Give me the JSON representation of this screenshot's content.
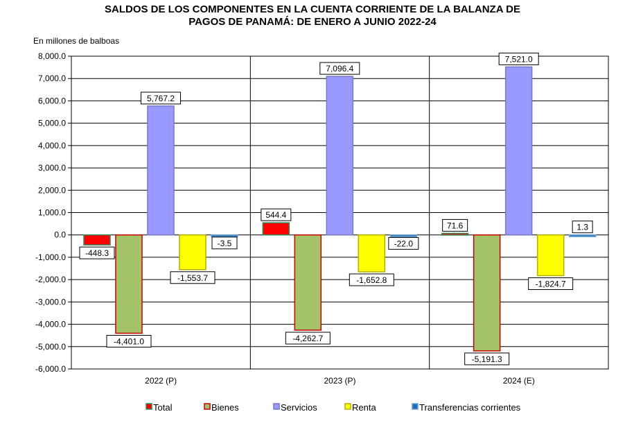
{
  "chart_data": {
    "type": "bar",
    "title_lines": [
      "SALDOS DE LOS COMPONENTES EN LA CUENTA CORRIENTE DE LA BALANZA  DE",
      "PAGOS DE PANAMÁ:  DE ENERO A JUNIO 2022-24"
    ],
    "ylabel": "En millones de balboas",
    "xlabel": "",
    "ylim": [
      -6000,
      8000
    ],
    "ytick_step": 1000,
    "yticks": [
      "8,000.0",
      "7,000.0",
      "6,000.0",
      "5,000.0",
      "4,000.0",
      "3,000.0",
      "2,000.0",
      "1,000.0",
      "0.0",
      "-1,000.0",
      "-2,000.0",
      "-3,000.0",
      "-4,000.0",
      "-5,000.0",
      "-6,000.0"
    ],
    "categories": [
      "2022 (P)",
      "2023 (P)",
      "2024 (E)"
    ],
    "series": [
      {
        "name": "Total",
        "values": [
          -448.3,
          544.4,
          71.6
        ],
        "labels": [
          "-448.3",
          "544.4",
          "71.6"
        ],
        "fill": "#ff0000",
        "stroke": "#2e8b57"
      },
      {
        "name": "Bienes",
        "values": [
          -4401.0,
          -4262.7,
          -5191.3
        ],
        "labels": [
          "-4,401.0",
          "-4,262.7",
          "-5,191.3"
        ],
        "fill": "#a4c268",
        "stroke": "#cc0000"
      },
      {
        "name": "Servicios",
        "values": [
          5767.2,
          7096.4,
          7521.0
        ],
        "labels": [
          "5,767.2",
          "7,096.4",
          "7,521.0"
        ],
        "fill": "#9999ff",
        "stroke": "#7777cc"
      },
      {
        "name": "Renta",
        "values": [
          -1553.7,
          -1652.8,
          -1824.7
        ],
        "labels": [
          "-1,553.7",
          "-1,652.8",
          "-1,824.7"
        ],
        "fill": "#ffff00",
        "stroke": "#b0b000"
      },
      {
        "name": "Transferencias corrientes",
        "values": [
          -3.5,
          -22.0,
          1.3
        ],
        "labels": [
          "-3.5",
          "-22.0",
          "1.3"
        ],
        "fill": "#1f6fb5",
        "stroke": "#6aa0d0"
      }
    ],
    "grid": true,
    "legend": "bottom"
  }
}
